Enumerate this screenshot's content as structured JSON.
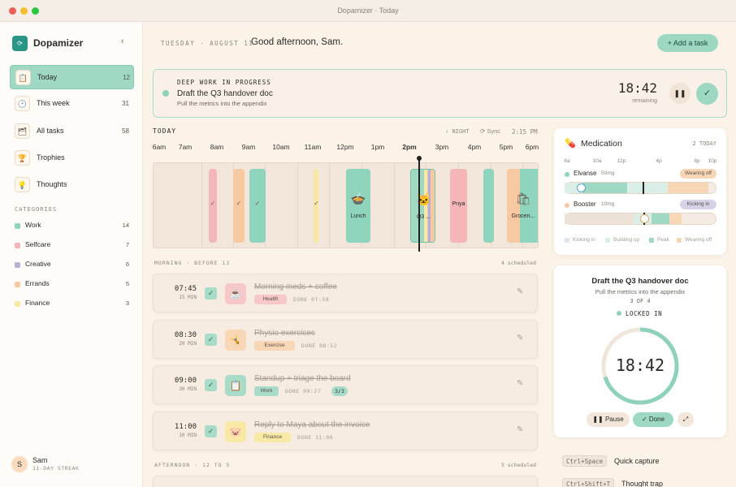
{
  "window_title": "Dopamizer · Today",
  "sidebar": {
    "brand": "Dopamizer",
    "nav": [
      {
        "label": "Today",
        "count": "12"
      },
      {
        "label": "This week",
        "count": "31"
      },
      {
        "label": "All tasks",
        "count": "58"
      },
      {
        "label": "Trophies"
      },
      {
        "label": "Thoughts"
      }
    ],
    "categories_heading": "CATEGORIES",
    "categories": [
      {
        "label": "Work",
        "count": "14"
      },
      {
        "label": "Selfcare",
        "count": "7"
      },
      {
        "label": "Creative",
        "count": "6"
      },
      {
        "label": "Errands",
        "count": "5"
      },
      {
        "label": "Finance",
        "count": "3"
      }
    ],
    "user": {
      "initial": "S",
      "name": "Sam",
      "streak": "11-DAY STREAK"
    }
  },
  "header": {
    "date": "TUESDAY · AUGUST 11",
    "greeting": "Good afternoon, Sam.",
    "add_button": "+ Add a task"
  },
  "deep_work": {
    "label": "DEEP WORK IN PROGRESS",
    "title": "Draft the Q3 handover doc",
    "subtitle": "Pull the metrics into the appendix",
    "timer": "18:42",
    "timer_label": "remaining"
  },
  "timeline": {
    "heading": "TODAY",
    "night": "NIGHT",
    "sync": "Sync",
    "now": "2:15 PM",
    "hours": [
      "6am",
      "7am",
      "8am",
      "9am",
      "10am",
      "11am",
      "12pm",
      "1pm",
      "2pm",
      "3pm",
      "4pm",
      "5pm",
      "6pm"
    ],
    "blocks": [
      "Lunch",
      "Q3 ...",
      "Priya",
      "Groceri..."
    ]
  },
  "morning": {
    "heading": "MORNING · BEFORE 12",
    "scheduled": "4 scheduled",
    "tasks": [
      {
        "time": "07:45",
        "duration": "15 MIN",
        "title": "Morning meds + coffee",
        "tag": "Health",
        "done": "DONE 07:58"
      },
      {
        "time": "08:30",
        "duration": "20 MIN",
        "title": "Physio exercises",
        "tag": "Exercise",
        "done": "DONE 08:52"
      },
      {
        "time": "09:00",
        "duration": "30 MIN",
        "title": "Standup + triage the board",
        "tag": "Work",
        "done": "DONE 09:27",
        "progress": "3/3"
      },
      {
        "time": "11:00",
        "duration": "10 MIN",
        "title": "Reply to Maya about the invoice",
        "tag": "Finance",
        "done": "DONE 11:06"
      }
    ]
  },
  "afternoon": {
    "heading": "AFTERNOON · 12 TO 5",
    "scheduled": "5 scheduled"
  },
  "medication": {
    "title": "Medication",
    "count": "2 TODAY",
    "axis": [
      "6a",
      "10a",
      "12p",
      "4p",
      "8p",
      "10p"
    ],
    "meds": [
      {
        "name": "Elvanse",
        "dose": "50mg",
        "status": "Wearing off"
      },
      {
        "name": "Booster",
        "dose": "10mg",
        "status": "Kicking in"
      }
    ],
    "legend": [
      "Kicking in",
      "Building up",
      "Peak",
      "Wearing off"
    ]
  },
  "focus": {
    "title": "Draft the Q3 handover doc",
    "subtitle": "Pull the metrics into the appendix",
    "progress": "3 OF 4",
    "state": "LOCKED IN",
    "timer": "18:42",
    "pause": "Pause",
    "done": "Done"
  },
  "shortcuts": [
    {
      "keys": "Ctrl+Space",
      "label": "Quick capture"
    },
    {
      "keys": "Ctrl+Shift+T",
      "label": "Thought trap"
    }
  ]
}
